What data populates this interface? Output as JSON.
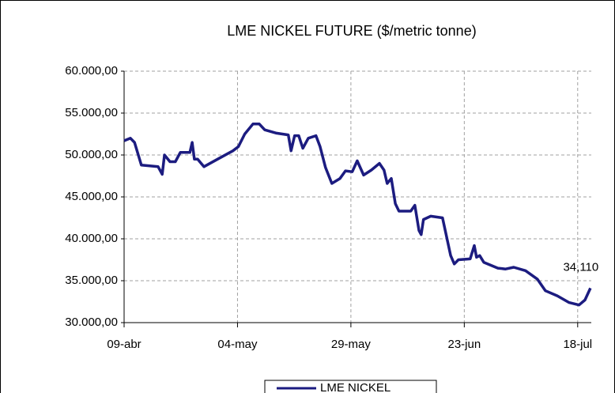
{
  "chart_data": {
    "type": "line",
    "title": "LME NICKEL FUTURE  ($/metric tonne)",
    "xlim": [
      0,
      103
    ],
    "xticks": [
      {
        "value": 0,
        "label": "09-abr"
      },
      {
        "value": 25,
        "label": "04-may"
      },
      {
        "value": 50,
        "label": "29-may"
      },
      {
        "value": 75,
        "label": "23-jun"
      },
      {
        "value": 100,
        "label": "18-jul"
      }
    ],
    "ylim": [
      30000,
      60000
    ],
    "yticks": [
      {
        "value": 30000,
        "label": "30.000,00"
      },
      {
        "value": 35000,
        "label": "35.000,00"
      },
      {
        "value": 40000,
        "label": "40.000,00"
      },
      {
        "value": 45000,
        "label": "45.000,00"
      },
      {
        "value": 50000,
        "label": "50.000,00"
      },
      {
        "value": 55000,
        "label": "55.000,00"
      },
      {
        "value": 60000,
        "label": "60.000,00"
      }
    ],
    "grid": true,
    "series": [
      {
        "name": "LME NICKEL",
        "color": "#1c1c80",
        "x": [
          0,
          1.4,
          2.3,
          3.8,
          7.5,
          8.4,
          8.9,
          10.1,
          11.3,
          12.4,
          14.5,
          15.0,
          15.5,
          16.2,
          17.6,
          20.6,
          24.0,
          25.2,
          26.6,
          28.4,
          29.8,
          31.0,
          33.6,
          36.2,
          36.8,
          37.6,
          38.5,
          39.4,
          40.6,
          42.3,
          43.2,
          44.4,
          45.8,
          47.6,
          48.8,
          50.3,
          51.4,
          52.8,
          54.5,
          56.3,
          57.3,
          58.0,
          58.9,
          59.8,
          60.6,
          63.2,
          64.1,
          65.0,
          65.5,
          66.0,
          67.6,
          70.2,
          72.0,
          72.8,
          73.7,
          76.3,
          77.2,
          77.7,
          78.4,
          79.3,
          82.4,
          84.1,
          85.9,
          88.5,
          91.1,
          92.9,
          95.5,
          98.1,
          100.3,
          101.6,
          102.8
        ],
        "values": [
          51700,
          52000,
          51500,
          48800,
          48600,
          47700,
          50000,
          49200,
          49200,
          50300,
          50300,
          51500,
          49500,
          49500,
          48600,
          49500,
          50500,
          51000,
          52500,
          53700,
          53700,
          53000,
          52600,
          52400,
          50500,
          52300,
          52300,
          50800,
          52000,
          52300,
          51000,
          48500,
          46600,
          47200,
          48100,
          48000,
          49300,
          47600,
          48200,
          49000,
          48200,
          46600,
          47200,
          44200,
          43300,
          43300,
          44000,
          41000,
          40500,
          42300,
          42700,
          42500,
          38000,
          37000,
          37500,
          37600,
          39200,
          37800,
          38000,
          37200,
          36500,
          36400,
          36600,
          36200,
          35200,
          33800,
          33200,
          32400,
          32100,
          32700,
          34110
        ]
      }
    ],
    "annotations": [
      {
        "text": "34,110"
      }
    ],
    "legend": "bottom"
  }
}
